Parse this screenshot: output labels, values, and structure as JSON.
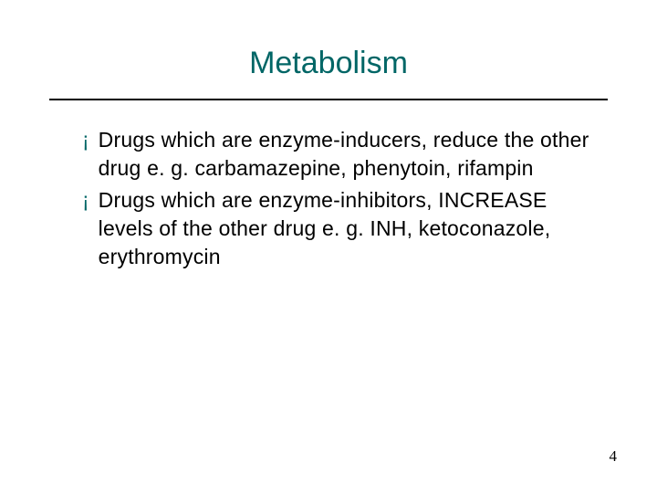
{
  "slide": {
    "title": "Metabolism",
    "title_color": "#006666",
    "title_fontsize": 34,
    "divider_color": "#000000",
    "background_color": "#ffffff",
    "bullet_glyph": "¡",
    "bullet_color": "#006666",
    "body_fontsize": 23,
    "body_color": "#000000",
    "items": [
      {
        "text": "Drugs which are enzyme-inducers, reduce the other drug e. g. carbamazepine, phenytoin, rifampin"
      },
      {
        "text": "Drugs which are enzyme-inhibitors, INCREASE levels of the other drug e. g. INH, ketoconazole, erythromycin"
      }
    ],
    "page_number": "4"
  }
}
